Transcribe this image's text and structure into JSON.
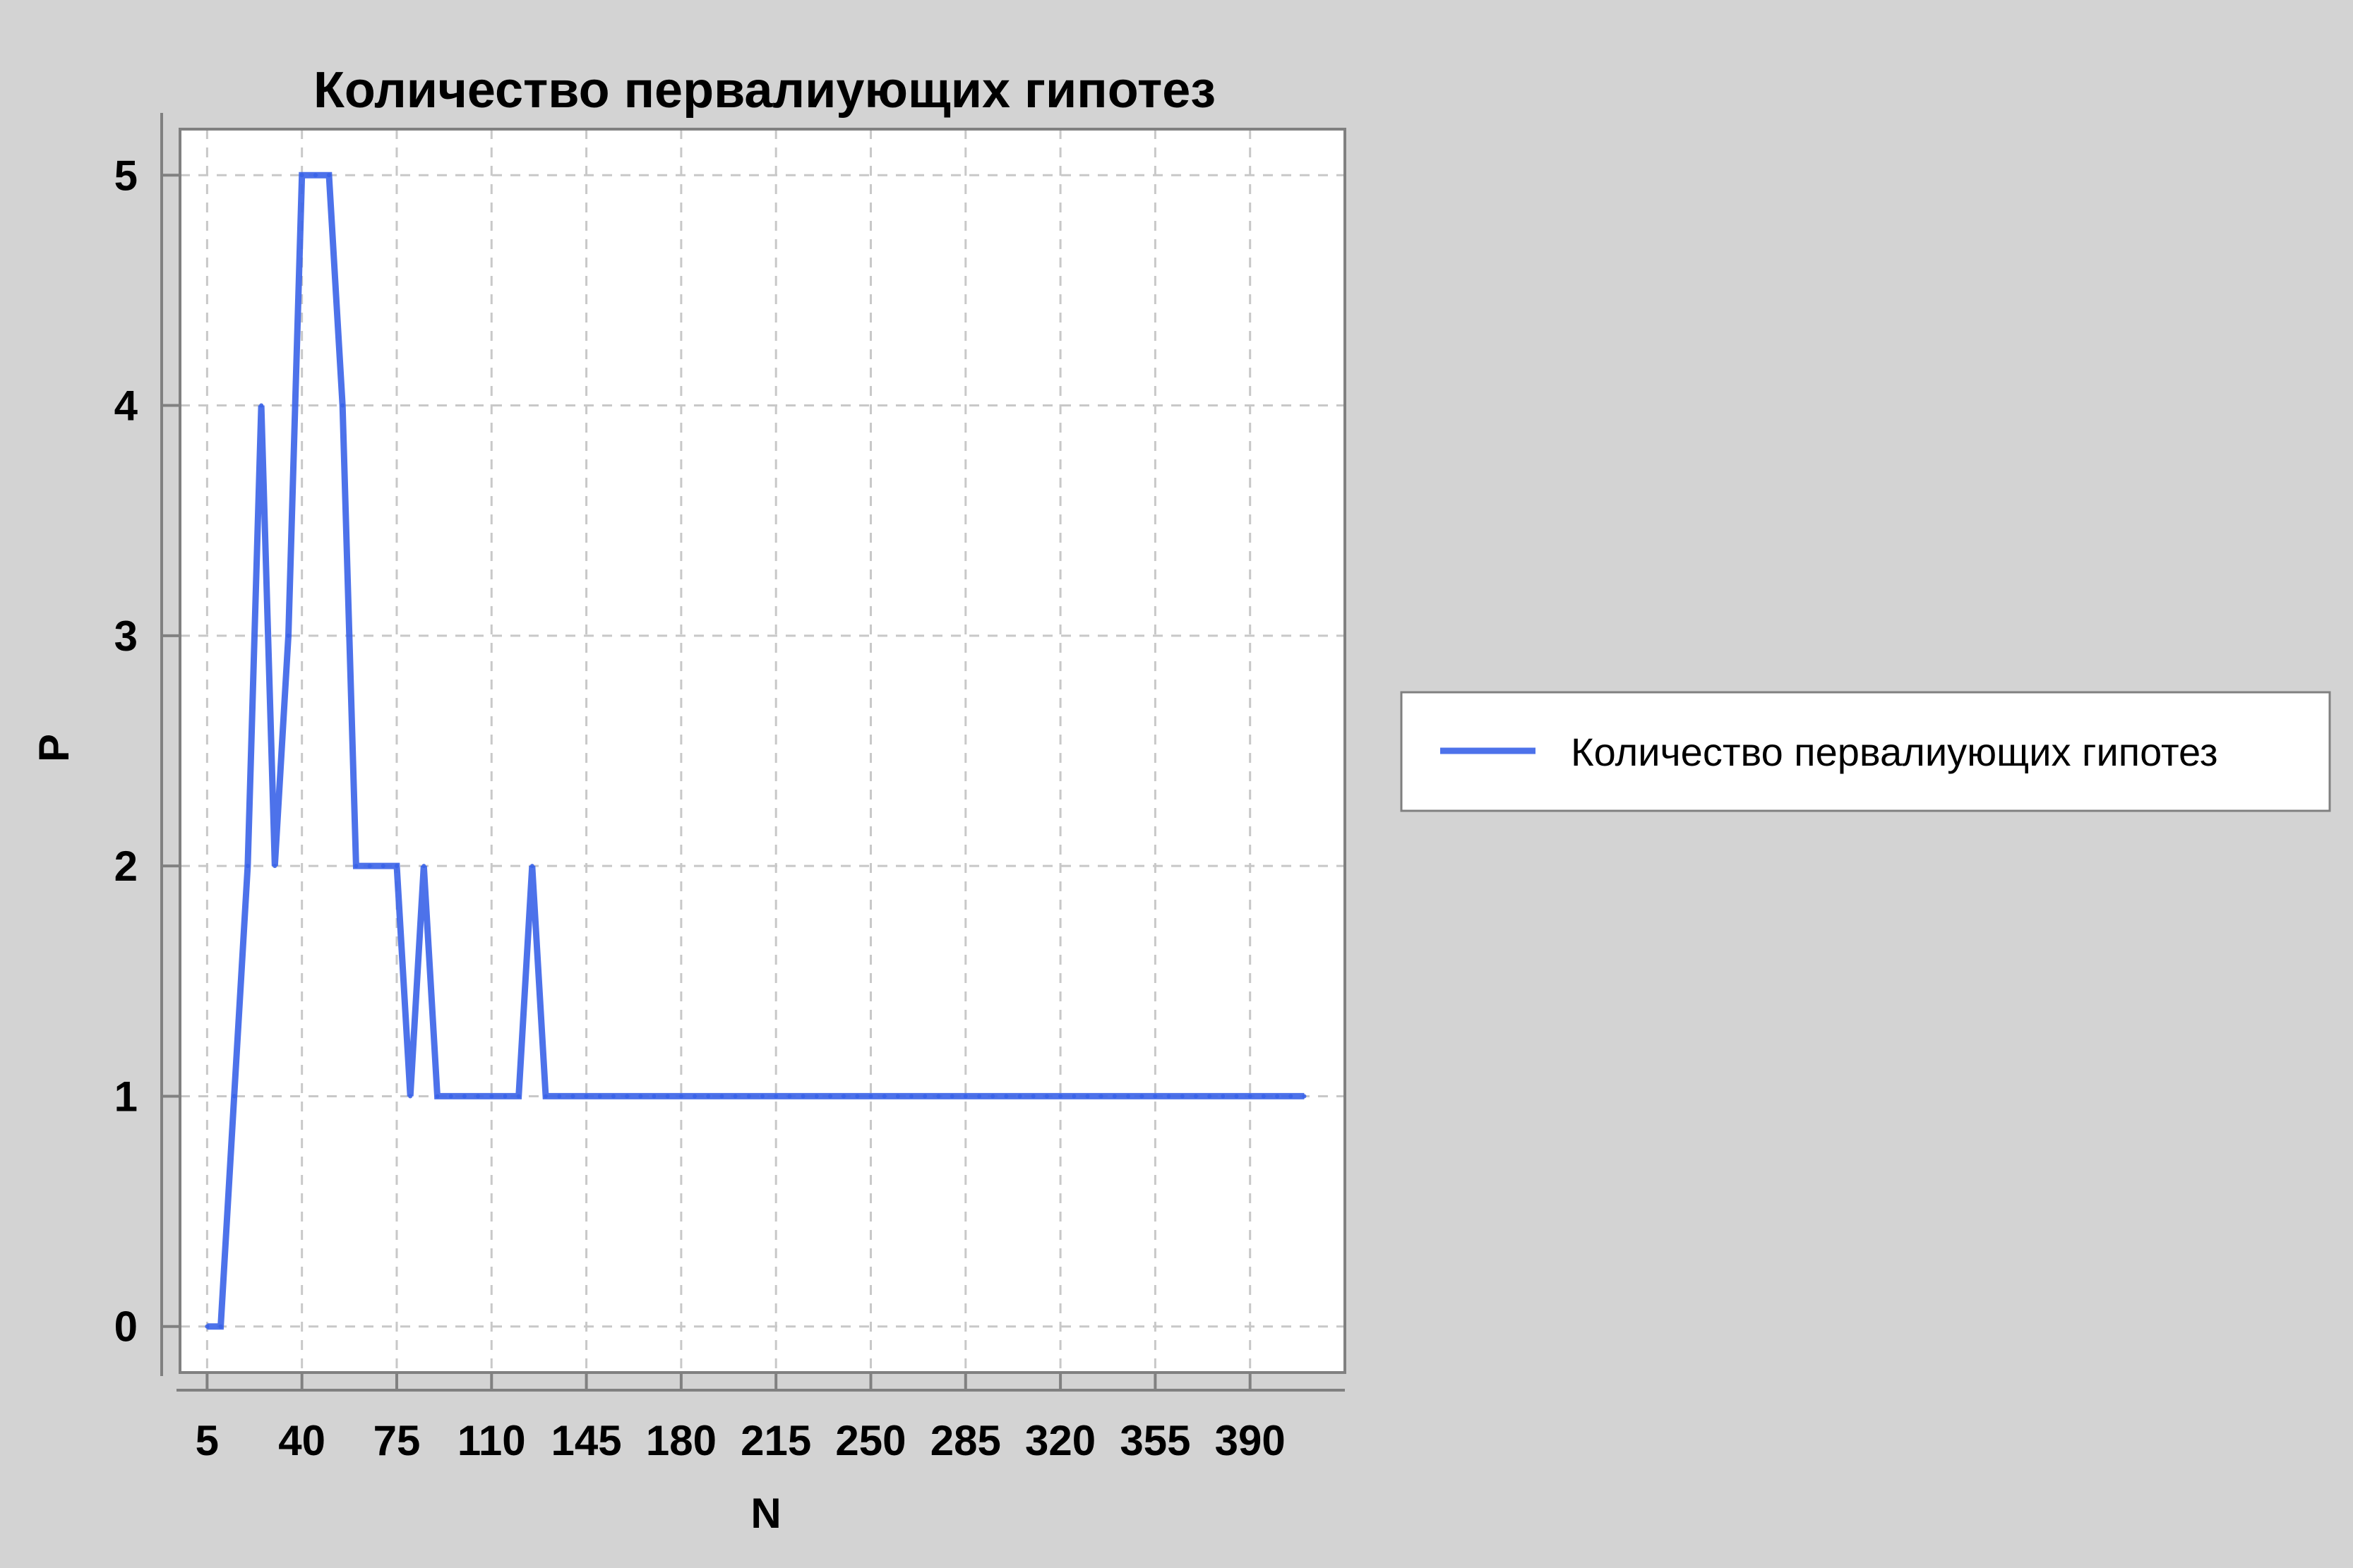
{
  "chart_data": {
    "type": "line",
    "title": "Количество первалиующих гипотез",
    "xlabel": "N",
    "ylabel": "P",
    "xlim": [
      -5,
      425
    ],
    "ylim": [
      -0.2,
      5.2
    ],
    "xticks": [
      5,
      40,
      75,
      110,
      145,
      180,
      215,
      250,
      285,
      320,
      355,
      390
    ],
    "yticks": [
      0,
      1,
      2,
      3,
      4,
      5
    ],
    "grid": true,
    "legend_position": "right",
    "series": [
      {
        "name": "Количество первалиующих гипотез",
        "color": "#3a63e8",
        "x": [
          5,
          10,
          15,
          20,
          25,
          30,
          35,
          40,
          45,
          50,
          55,
          60,
          65,
          70,
          75,
          80,
          85,
          90,
          95,
          100,
          105,
          110,
          115,
          120,
          125,
          130,
          135,
          140,
          145,
          150,
          155,
          160,
          165,
          170,
          175,
          180,
          185,
          190,
          195,
          200,
          205,
          210,
          215,
          220,
          225,
          230,
          235,
          240,
          245,
          250,
          255,
          260,
          265,
          270,
          275,
          280,
          285,
          290,
          295,
          300,
          305,
          310,
          315,
          320,
          325,
          330,
          335,
          340,
          345,
          350,
          355,
          360,
          365,
          370,
          375,
          380,
          385,
          390,
          395,
          400,
          405,
          410
        ],
        "y": [
          0,
          0,
          1,
          2,
          4,
          2,
          3,
          5,
          5,
          5,
          4,
          2,
          2,
          2,
          2,
          1,
          2,
          1,
          1,
          1,
          1,
          1,
          1,
          1,
          2,
          1,
          1,
          1,
          1,
          1,
          1,
          1,
          1,
          1,
          1,
          1,
          1,
          1,
          1,
          1,
          1,
          1,
          1,
          1,
          1,
          1,
          1,
          1,
          1,
          1,
          1,
          1,
          1,
          1,
          1,
          1,
          1,
          1,
          1,
          1,
          1,
          1,
          1,
          1,
          1,
          1,
          1,
          1,
          1,
          1,
          1,
          1,
          1,
          1,
          1,
          1,
          1,
          1,
          1,
          1,
          1,
          1
        ]
      }
    ]
  }
}
